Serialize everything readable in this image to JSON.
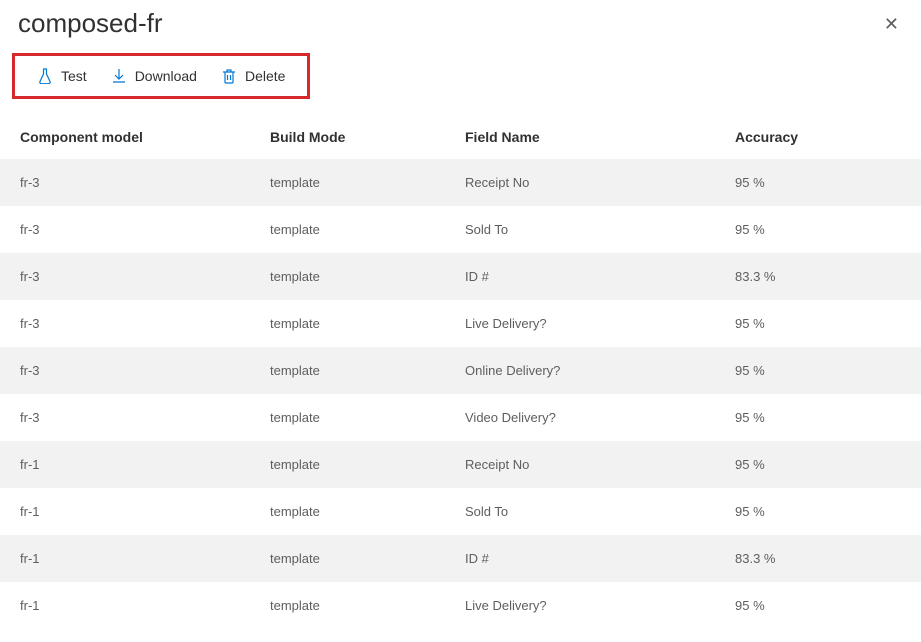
{
  "header": {
    "title": "composed-fr"
  },
  "toolbar": {
    "test_label": "Test",
    "download_label": "Download",
    "delete_label": "Delete",
    "icon_color": "#0078d4",
    "highlight_border_color": "#d6292b"
  },
  "table": {
    "columns": [
      "Component model",
      "Build Mode",
      "Field Name",
      "Accuracy"
    ],
    "rows": [
      [
        "fr-3",
        "template",
        "Receipt No",
        "95 %"
      ],
      [
        "fr-3",
        "template",
        "Sold To",
        "95 %"
      ],
      [
        "fr-3",
        "template",
        "ID #",
        "83.3 %"
      ],
      [
        "fr-3",
        "template",
        "Live Delivery?",
        "95 %"
      ],
      [
        "fr-3",
        "template",
        "Online Delivery?",
        "95 %"
      ],
      [
        "fr-3",
        "template",
        "Video Delivery?",
        "95 %"
      ],
      [
        "fr-1",
        "template",
        "Receipt No",
        "95 %"
      ],
      [
        "fr-1",
        "template",
        "Sold To",
        "95 %"
      ],
      [
        "fr-1",
        "template",
        "ID #",
        "83.3 %"
      ],
      [
        "fr-1",
        "template",
        "Live Delivery?",
        "95 %"
      ]
    ],
    "row_even_bg": "#f2f2f2",
    "row_odd_bg": "#ffffff",
    "header_font_weight": 600,
    "cell_text_color": "#605e5c"
  }
}
